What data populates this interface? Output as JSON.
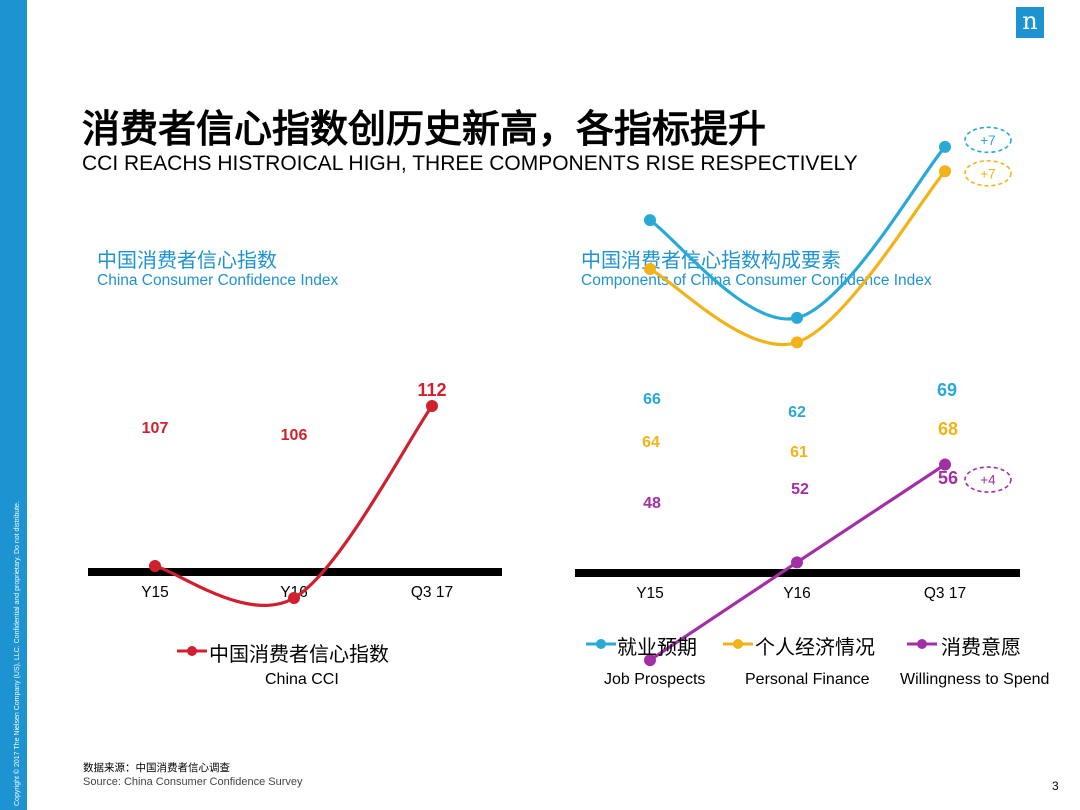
{
  "slide": {
    "title": "消费者信心指数创历史新高，各指标提升",
    "subtitle": "CCI REACHS HISTROICAL HIGH, THREE COMPONENTS RISE RESPECTIVELY",
    "copyright": "Copyright © 2017 The Nielsen Company (US), LLC. Confidential and proprietary. Do not distribute.",
    "logo_letter": "n",
    "source_zh": "数据来源：中国消费者信心调查",
    "source_en": "Source: China Consumer Confidence Survey",
    "page_number": "3",
    "colors": {
      "brand_blue": "#1e93d2",
      "cci_red": "#d0202e",
      "job_blue": "#28a9d6",
      "finance_yellow": "#f2b319",
      "spend_purple": "#a22fa6"
    }
  },
  "left_panel": {
    "title_zh": "中国消费者信心指数",
    "title_en": "China  Consumer Confidence Index",
    "legend_zh": "中国消费者信心指数",
    "legend_en": "China CCI"
  },
  "right_panel": {
    "title_zh": "中国消费者信心指数构成要素",
    "title_en": "Components of China  Consumer Confidence Index",
    "legend": [
      {
        "zh": "就业预期",
        "en": "Job Prospects"
      },
      {
        "zh": "个人经济情况",
        "en": "Personal Finance"
      },
      {
        "zh": "消费意愿",
        "en": "Willingness to Spend"
      }
    ]
  },
  "chart_data": [
    {
      "type": "line",
      "title": "中国消费者信心指数",
      "subtitle": "China  Consumer Confidence Index",
      "categories": [
        "Y15",
        "Y16",
        "Q3 17"
      ],
      "series": [
        {
          "name": "中国消费者信心指数 China CCI",
          "values": [
            107,
            106,
            112
          ],
          "color": "#d0202e"
        }
      ],
      "ylim": [
        95,
        120
      ],
      "grid": false,
      "legend_position": "bottom"
    },
    {
      "type": "line",
      "title": "中国消费者信心指数构成要素",
      "subtitle": "Components of China  Consumer Confidence Index",
      "categories": [
        "Y15",
        "Y16",
        "Q3 17"
      ],
      "series": [
        {
          "name": "就业预期 Job Prospects",
          "values": [
            66,
            62,
            69
          ],
          "color": "#28a9d6",
          "change": "+7"
        },
        {
          "name": "个人经济情况 Personal Finance",
          "values": [
            64,
            61,
            68
          ],
          "color": "#f2b319",
          "change": "+7"
        },
        {
          "name": "消费意愿 Willingness to Spend",
          "values": [
            48,
            52,
            56
          ],
          "color": "#a22fa6",
          "change": "+4"
        }
      ],
      "ylim": [
        30,
        80
      ],
      "grid": false,
      "legend_position": "bottom"
    }
  ]
}
